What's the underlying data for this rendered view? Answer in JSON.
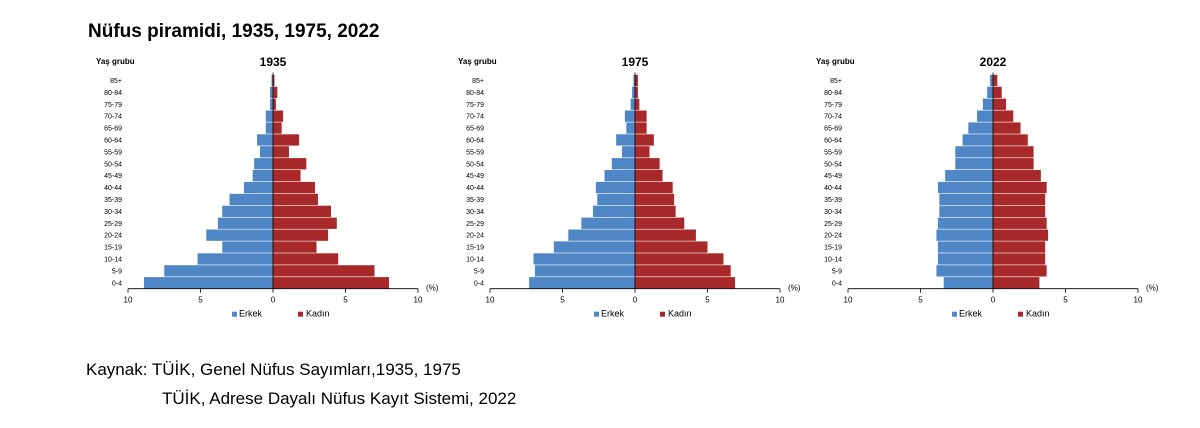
{
  "title": "Nüfus piramidi, 1935, 1975, 2022",
  "colors": {
    "male": "#4f86c6",
    "female": "#a8292a",
    "axis": "#000000"
  },
  "chart_data": [
    {
      "type": "bar",
      "title": "1935",
      "ylabel": "Yaş grubu",
      "xunit": "(%)",
      "xlim": [
        -10,
        10
      ],
      "xticks": [
        "10",
        "5",
        "0",
        "5",
        "10"
      ],
      "categories": [
        "0-4",
        "5-9",
        "10-14",
        "15-19",
        "20-24",
        "25-29",
        "30-34",
        "35-39",
        "40-44",
        "45-49",
        "50-54",
        "55-59",
        "60-64",
        "65-69",
        "70-74",
        "75-79",
        "80-84",
        "85+"
      ],
      "series": [
        {
          "name": "Erkek",
          "values": [
            8.9,
            7.5,
            5.2,
            3.5,
            4.6,
            3.8,
            3.5,
            3.0,
            2.0,
            1.4,
            1.3,
            0.9,
            1.1,
            0.5,
            0.5,
            0.2,
            0.2,
            0.1
          ]
        },
        {
          "name": "Kadın",
          "values": [
            8.0,
            7.0,
            4.5,
            3.0,
            3.8,
            4.4,
            4.0,
            3.1,
            2.9,
            1.9,
            2.3,
            1.1,
            1.8,
            0.6,
            0.7,
            0.2,
            0.3,
            0.1
          ]
        }
      ],
      "legend": "bottom"
    },
    {
      "type": "bar",
      "title": "1975",
      "ylabel": "Yaş grubu",
      "xunit": "(%)",
      "xlim": [
        -10,
        10
      ],
      "xticks": [
        "10",
        "5",
        "0",
        "5",
        "10"
      ],
      "categories": [
        "0-4",
        "5-9",
        "10-14",
        "15-19",
        "20-24",
        "25-29",
        "30-34",
        "35-39",
        "40-44",
        "45-49",
        "50-54",
        "55-59",
        "60-64",
        "65-69",
        "70-74",
        "75-79",
        "80-84",
        "85+"
      ],
      "series": [
        {
          "name": "Erkek",
          "values": [
            7.3,
            6.9,
            7.0,
            5.6,
            4.6,
            3.7,
            2.9,
            2.6,
            2.7,
            2.1,
            1.6,
            0.9,
            1.3,
            0.6,
            0.7,
            0.3,
            0.2,
            0.1
          ]
        },
        {
          "name": "Kadın",
          "values": [
            6.9,
            6.6,
            6.1,
            5.0,
            4.2,
            3.4,
            2.8,
            2.7,
            2.6,
            1.9,
            1.7,
            1.0,
            1.3,
            0.8,
            0.8,
            0.3,
            0.2,
            0.2
          ]
        }
      ],
      "legend": "bottom"
    },
    {
      "type": "bar",
      "title": "2022",
      "ylabel": "Yaş grubu",
      "xunit": "(%)",
      "xlim": [
        -10,
        10
      ],
      "xticks": [
        "10",
        "5",
        "0",
        "5",
        "10"
      ],
      "categories": [
        "0-4",
        "5-9",
        "10-14",
        "15-19",
        "20-24",
        "25-29",
        "30-34",
        "35-39",
        "40-44",
        "45-49",
        "50-54",
        "55-59",
        "60-64",
        "65-69",
        "70-74",
        "75-79",
        "80-84",
        "85+"
      ],
      "series": [
        {
          "name": "Erkek",
          "values": [
            3.4,
            3.9,
            3.8,
            3.8,
            3.9,
            3.8,
            3.7,
            3.7,
            3.8,
            3.3,
            2.6,
            2.6,
            2.1,
            1.7,
            1.1,
            0.7,
            0.4,
            0.2
          ]
        },
        {
          "name": "Kadın",
          "values": [
            3.2,
            3.7,
            3.6,
            3.6,
            3.8,
            3.7,
            3.6,
            3.6,
            3.7,
            3.3,
            2.8,
            2.8,
            2.4,
            1.9,
            1.4,
            0.9,
            0.6,
            0.3
          ]
        }
      ],
      "legend": "bottom"
    }
  ],
  "source": {
    "line1": "Kaynak: TÜİK, Genel Nüfus Sayımları,1935, 1975",
    "line2": "TÜİK, Adrese Dayalı Nüfus Kayıt Sistemi, 2022"
  }
}
